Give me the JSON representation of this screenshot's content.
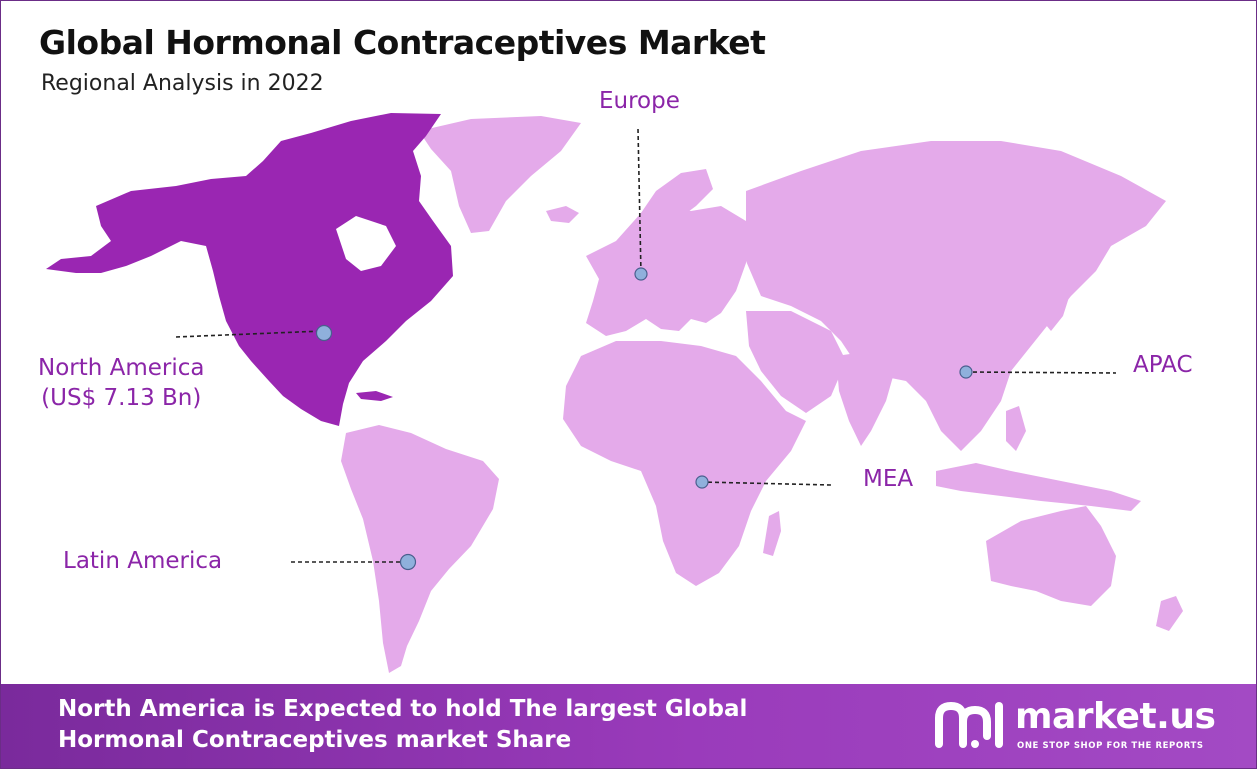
{
  "header": {
    "title": "Global Hormonal Contraceptives Market",
    "subtitle": "Regional Analysis in 2022"
  },
  "regions": {
    "north_america": {
      "name": "North America",
      "value": "(US$ 7.13 Bn)"
    },
    "europe": {
      "name": "Europe"
    },
    "apac": {
      "name": "APAC"
    },
    "mea": {
      "name": "MEA"
    },
    "latin_america": {
      "name": "Latin America"
    }
  },
  "footer": {
    "line1": "North America is Expected to hold The largest Global",
    "line2": "Hormonal Contraceptives market Share"
  },
  "brand": {
    "name": "market.us",
    "tagline": "ONE STOP SHOP FOR THE REPORTS"
  },
  "colors": {
    "highlight_region": "#9a26b2",
    "other_region": "#e4aaea",
    "label": "#8b25a8",
    "footer": "#8c35ad"
  }
}
